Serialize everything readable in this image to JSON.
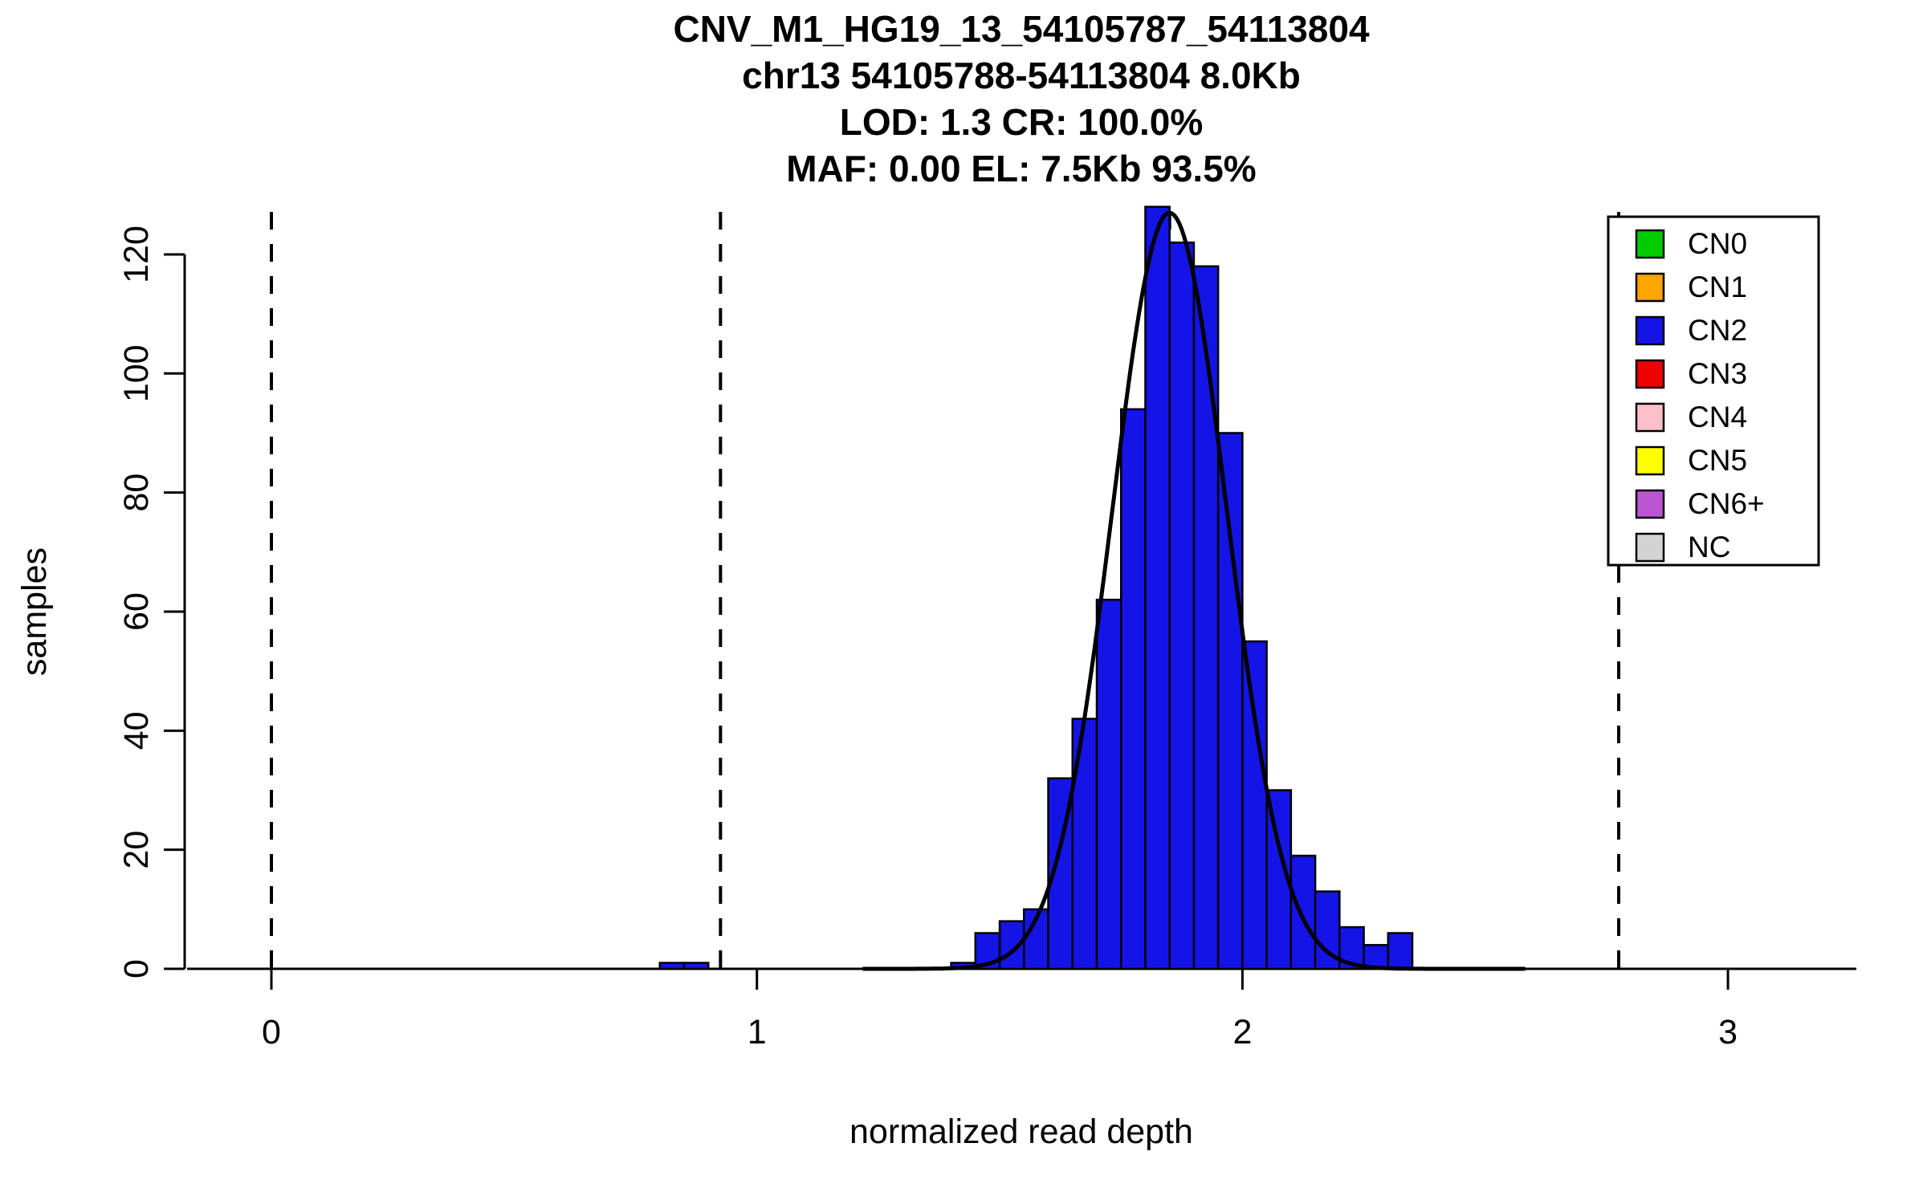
{
  "chart_data": {
    "type": "bar",
    "title_lines": [
      "CNV_M1_HG19_13_54105787_54113804",
      "chr13 54105788-54113804 8.0Kb",
      "LOD: 1.3 CR: 100.0%",
      "MAF: 0.00 EL: 7.5Kb 93.5%"
    ],
    "xlabel": "normalized read depth",
    "ylabel": "samples",
    "xlim": [
      -0.17,
      3.26
    ],
    "ylim": [
      0,
      128
    ],
    "x_ticks": [
      0,
      1,
      2,
      3
    ],
    "y_ticks": [
      0,
      20,
      40,
      60,
      80,
      100,
      120
    ],
    "grid": false,
    "legend_position": "top-right",
    "bin_width": 0.05,
    "bar_color": "#1414E6",
    "histogram": [
      {
        "x": 0.8,
        "count": 1
      },
      {
        "x": 0.85,
        "count": 1
      },
      {
        "x": 1.4,
        "count": 1
      },
      {
        "x": 1.45,
        "count": 6
      },
      {
        "x": 1.5,
        "count": 8
      },
      {
        "x": 1.55,
        "count": 10
      },
      {
        "x": 1.6,
        "count": 32
      },
      {
        "x": 1.65,
        "count": 42
      },
      {
        "x": 1.7,
        "count": 62
      },
      {
        "x": 1.75,
        "count": 94
      },
      {
        "x": 1.8,
        "count": 128
      },
      {
        "x": 1.85,
        "count": 122
      },
      {
        "x": 1.9,
        "count": 118
      },
      {
        "x": 1.95,
        "count": 90
      },
      {
        "x": 2.0,
        "count": 55
      },
      {
        "x": 2.05,
        "count": 30
      },
      {
        "x": 2.1,
        "count": 19
      },
      {
        "x": 2.15,
        "count": 13
      },
      {
        "x": 2.2,
        "count": 7
      },
      {
        "x": 2.25,
        "count": 4
      },
      {
        "x": 2.3,
        "count": 6
      }
    ],
    "gaussian_fit": {
      "mean": 1.85,
      "sd": 0.118,
      "peak": 127,
      "x_start": 1.22,
      "x_end": 2.58
    },
    "dashed_lines": [
      0,
      0.925,
      1.85,
      2.775
    ],
    "legend": [
      {
        "label": "CN0",
        "color": "#00CD00"
      },
      {
        "label": "CN1",
        "color": "#FFA500"
      },
      {
        "label": "CN2",
        "color": "#1414E6"
      },
      {
        "label": "CN3",
        "color": "#EE0000"
      },
      {
        "label": "CN4",
        "color": "#FFC0CB"
      },
      {
        "label": "CN5",
        "color": "#FFFF00"
      },
      {
        "label": "CN6+",
        "color": "#BA55D3"
      },
      {
        "label": "NC",
        "color": "#D3D3D3"
      }
    ]
  }
}
